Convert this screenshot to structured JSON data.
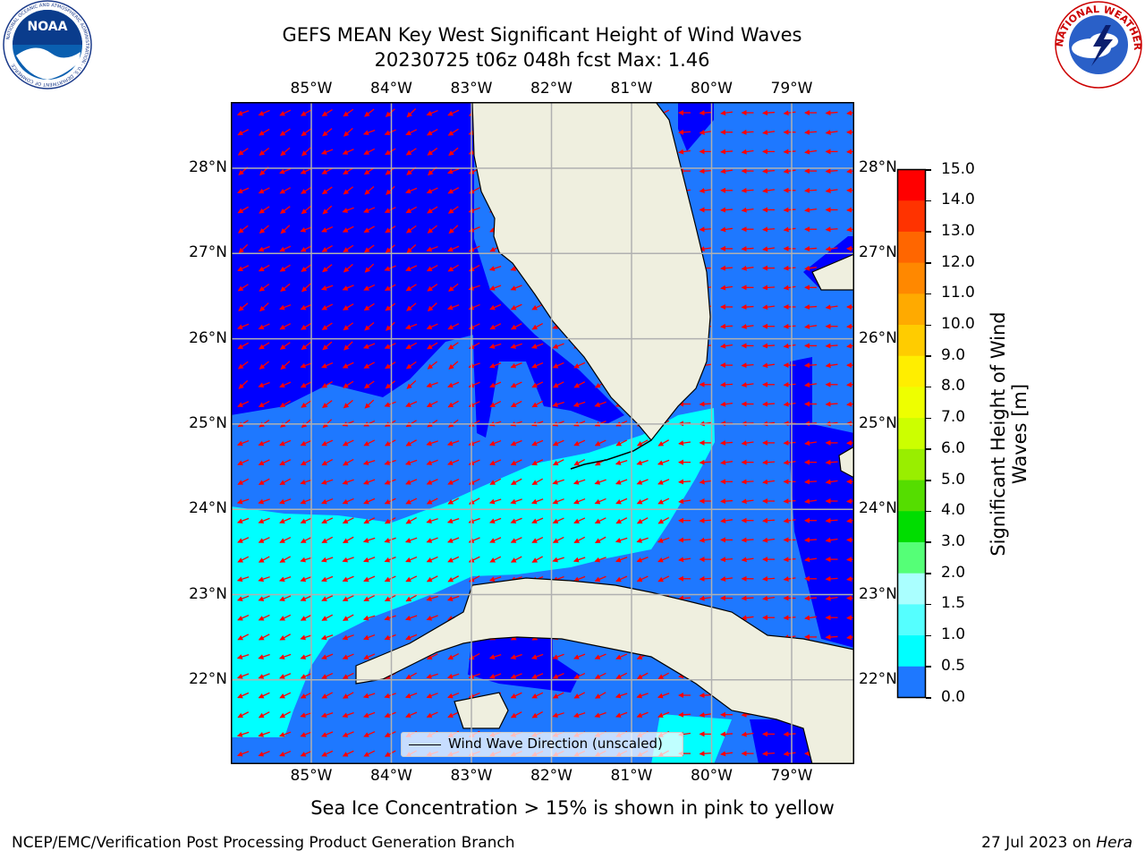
{
  "title": {
    "line1": "GEFS MEAN Key West Significant Height of Wind Waves",
    "line2": "20230725 t06z 048h fcst   Max: 1.46"
  },
  "logos": {
    "left": {
      "text": "NOAA",
      "ring_text": "NATIONAL OCEANIC AND ATMOSPHERIC ADMINISTRATION · U.S. DEPARTMENT OF COMMERCE"
    },
    "right": {
      "ring_text": "NATIONAL WEATHER SERVICE"
    }
  },
  "map": {
    "lon_ticks": [
      "85°W",
      "84°W",
      "83°W",
      "82°W",
      "81°W",
      "80°W",
      "79°W"
    ],
    "lat_ticks": [
      "28°N",
      "27°N",
      "26°N",
      "25°N",
      "24°N",
      "23°N",
      "22°N"
    ],
    "legend_label": "Wind Wave Direction (unscaled)",
    "colors": {
      "band_0_0_5": "#0000ff",
      "band_0_5_1_0": "#1e78ff",
      "band_1_0_1_5": "#00ffff",
      "land": "#efefdf",
      "arrows": "#ff0000",
      "grid": "#b0b0b0"
    }
  },
  "colorbar": {
    "label": "Significant Height of Wind Waves [m]",
    "ticks": [
      "15.0",
      "14.0",
      "13.0",
      "12.0",
      "11.0",
      "10.0",
      "9.0",
      "8.0",
      "7.0",
      "6.0",
      "5.0",
      "4.0",
      "3.0",
      "2.0",
      "1.5",
      "1.0",
      "0.5",
      "0.0"
    ],
    "colors": [
      "#ff0000",
      "#ff3300",
      "#ff6600",
      "#ff8800",
      "#ffaa00",
      "#ffcc00",
      "#ffee00",
      "#eeff00",
      "#ccff00",
      "#99ee00",
      "#55dd00",
      "#00dd00",
      "#55ff77",
      "#aaffff",
      "#55ffff",
      "#00ffff",
      "#1e78ff",
      "#0000ff"
    ]
  },
  "note": "Sea Ice Concentration > 15% is shown in pink to yellow",
  "footer": {
    "left": "NCEP/EMC/Verification Post Processing Product Generation Branch",
    "date": "27 Jul 2023 on ",
    "machine": "Hera"
  }
}
